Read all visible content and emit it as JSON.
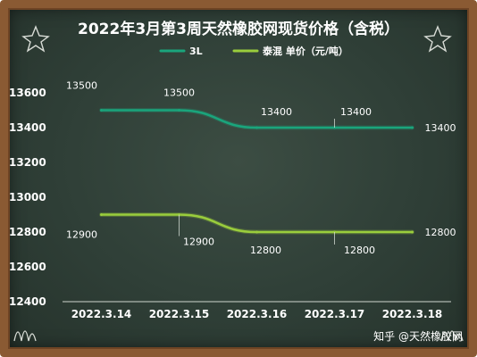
{
  "chart_data": {
    "type": "line",
    "title": "2022年3月第3周天然橡胶网现货价格（含税）",
    "categories": [
      "2022.3.14",
      "2022.3.15",
      "2022.3.16",
      "2022.3.17",
      "2022.3.18"
    ],
    "ylim": [
      12400,
      13600
    ],
    "yticks": [
      12400,
      12600,
      12800,
      13000,
      13200,
      13400,
      13600
    ],
    "grid": false,
    "legend_position": "top-center",
    "series": [
      {
        "name": "3L",
        "values": [
          13500,
          13500,
          13400,
          13400,
          13400
        ],
        "color": "#1aa57c"
      },
      {
        "name": "泰混  单价（元/吨）",
        "values": [
          12900,
          12900,
          12800,
          12800,
          12800
        ],
        "color": "#9acd3c"
      }
    ]
  },
  "watermark": "知乎 @天然橡胶网",
  "colors": {
    "board": "#2f3f37",
    "frame": "#8a5a33",
    "text": "#ffffff"
  }
}
